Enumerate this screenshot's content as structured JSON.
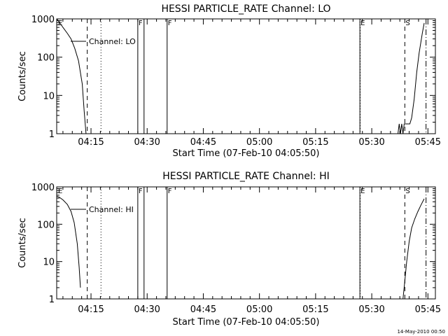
{
  "chart_data": [
    {
      "type": "line",
      "title": "HESSI PARTICLE_RATE Channel: LO",
      "xlabel": "Start Time (07-Feb-10 04:05:50)",
      "ylabel": "Counts/sec",
      "yscale": "log",
      "xlim": [
        "04:05:50",
        "05:47:00"
      ],
      "ylim": [
        1,
        1000
      ],
      "xticks": [
        "04:15",
        "04:30",
        "04:45",
        "05:00",
        "05:15",
        "05:30",
        "05:45"
      ],
      "yticks": [
        "1",
        "10",
        "100",
        "1000"
      ],
      "legend_position": "top-left",
      "grid": false,
      "series": [
        {
          "name": "Channel: LO",
          "segments": [
            {
              "x": [
                "04:05:50",
                "04:06:30",
                "04:07:30",
                "04:08:40",
                "04:09:40",
                "04:10:40",
                "04:11:40",
                "04:12:40",
                "04:13:10",
                "04:13:40"
              ],
              "y": [
                1000,
                830,
                600,
                420,
                300,
                170,
                80,
                20,
                4,
                1
              ]
            },
            {
              "x": [
                "05:37:00",
                "05:37:20",
                "05:37:40",
                "05:38:00",
                "05:38:20",
                "05:38:40",
                "05:39:30",
                "05:40:10",
                "05:40:40",
                "05:41:20",
                "05:42:00",
                "05:42:40",
                "05:43:30",
                "05:44:00"
              ],
              "y": [
                1,
                1.8,
                1,
                1.8,
                1,
                1.8,
                1.8,
                1.8,
                2.6,
                8,
                40,
                130,
                420,
                780
              ]
            }
          ]
        }
      ],
      "markers": [
        {
          "time": "04:14:00",
          "style": "dashed",
          "label": ""
        },
        {
          "time": "04:17:40",
          "style": "dotted",
          "label": ""
        },
        {
          "time": "04:27:30",
          "style": "solid",
          "label": "F"
        },
        {
          "time": "04:29:10",
          "style": "solid",
          "label": ""
        },
        {
          "time": "04:35:20",
          "style": "solid",
          "label": "F"
        },
        {
          "time": "05:26:50",
          "style": "solid",
          "label": "E"
        },
        {
          "time": "05:26:55",
          "style": "dotted",
          "label": ""
        },
        {
          "time": "05:38:50",
          "style": "dashed",
          "label": "S"
        },
        {
          "time": "05:44:30",
          "style": "dashdot",
          "label": ""
        }
      ],
      "corner_labels": [
        {
          "time": "04:05:50",
          "label": "E"
        }
      ]
    },
    {
      "type": "line",
      "title": "HESSI PARTICLE_RATE Channel: HI",
      "xlabel": "Start Time (07-Feb-10 04:05:50)",
      "ylabel": "Counts/sec",
      "yscale": "log",
      "xlim": [
        "04:05:50",
        "05:47:00"
      ],
      "ylim": [
        1,
        1000
      ],
      "xticks": [
        "04:15",
        "04:30",
        "04:45",
        "05:00",
        "05:15",
        "05:30",
        "05:45"
      ],
      "yticks": [
        "1",
        "10",
        "100",
        "1000"
      ],
      "legend_position": "top-left",
      "grid": false,
      "series": [
        {
          "name": "Channel: HI",
          "segments": [
            {
              "x": [
                "04:05:50",
                "04:06:30",
                "04:07:30",
                "04:08:40",
                "04:09:40",
                "04:10:30",
                "04:11:20",
                "04:11:50",
                "04:12:10"
              ],
              "y": [
                560,
                530,
                450,
                340,
                220,
                110,
                30,
                7,
                2
              ]
            },
            {
              "x": [
                "05:38:20",
                "05:38:50",
                "05:39:20",
                "05:40:00",
                "05:40:40",
                "05:41:30",
                "05:42:20",
                "05:43:10",
                "05:44:00"
              ],
              "y": [
                1,
                3,
                10,
                35,
                80,
                140,
                220,
                330,
                480
              ]
            }
          ]
        }
      ],
      "markers": [
        {
          "time": "04:14:00",
          "style": "dashed",
          "label": ""
        },
        {
          "time": "04:17:40",
          "style": "dotted",
          "label": ""
        },
        {
          "time": "04:27:30",
          "style": "solid",
          "label": "F"
        },
        {
          "time": "04:29:10",
          "style": "solid",
          "label": ""
        },
        {
          "time": "04:35:20",
          "style": "solid",
          "label": "F"
        },
        {
          "time": "05:26:50",
          "style": "solid",
          "label": "E"
        },
        {
          "time": "05:26:55",
          "style": "dotted",
          "label": ""
        },
        {
          "time": "05:38:50",
          "style": "dashed",
          "label": "S"
        },
        {
          "time": "05:44:30",
          "style": "dashdot",
          "label": ""
        }
      ],
      "corner_labels": [
        {
          "time": "04:05:50",
          "label": "E"
        }
      ]
    }
  ],
  "footer": {
    "timestamp": "14-May-2010 00:50"
  }
}
